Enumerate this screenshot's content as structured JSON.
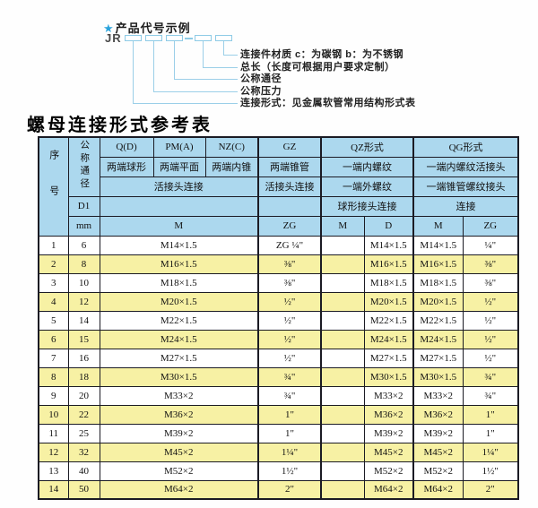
{
  "diagram": {
    "star_icon": "★",
    "heading": "产品代号示例",
    "prefix": "JR",
    "labels": [
      "连接件材质  c：为碳钢  b：为不锈钢",
      "总长（长度可根据用户要求定制）",
      "公称通径",
      "公称压力",
      "连接形式：见金属软管常用结构形式表"
    ]
  },
  "table": {
    "title": "螺母连接形式参考表",
    "header": {
      "col_no": "序号",
      "col_dn": "公称通径",
      "q": "Q(D)",
      "pm": "PM(A)",
      "nz": "NZ(C)",
      "gz": "GZ",
      "qz": "QZ形式",
      "qg": "QG形式",
      "q_desc": "两端球形",
      "pm_desc": "两端平面",
      "nz_desc": "两端内锥",
      "gz_desc": "两端锥管",
      "qz_desc1": "一端内螺纹",
      "qg_desc1": "一端内螺纹活接头",
      "joint_conn": "活接头连接",
      "gz_conn": "活接头连接",
      "qz_desc2": "一端外螺纹",
      "qg_desc2": "一端锥管螺纹接头",
      "d1": "D1",
      "qz_conn": "球形接头连接",
      "qg_conn": "连接",
      "mm": "mm",
      "m": "M",
      "zg": "ZG",
      "qz_m": "M",
      "qz_d": "D",
      "qg_m": "M",
      "qg_zg": "ZG"
    },
    "rows": [
      [
        "1",
        "6",
        "M14×1.5",
        "ZG ¼\"",
        "",
        "M14×1.5",
        "M14×1.5",
        "¼\""
      ],
      [
        "2",
        "8",
        "M16×1.5",
        "⅜\"",
        "",
        "M16×1.5",
        "M16×1.5",
        "⅜\""
      ],
      [
        "3",
        "10",
        "M18×1.5",
        "⅜\"",
        "",
        "M18×1.5",
        "M18×1.5",
        "⅜\""
      ],
      [
        "4",
        "12",
        "M20×1.5",
        "½\"",
        "",
        "M20×1.5",
        "M20×1.5",
        "½\""
      ],
      [
        "5",
        "14",
        "M22×1.5",
        "½\"",
        "",
        "M22×1.5",
        "M22×1.5",
        "½\""
      ],
      [
        "6",
        "15",
        "M24×1.5",
        "½\"",
        "",
        "M24×1.5",
        "M24×1.5",
        "½\""
      ],
      [
        "7",
        "16",
        "M27×1.5",
        "½\"",
        "",
        "M27×1.5",
        "M27×1.5",
        "½\""
      ],
      [
        "8",
        "18",
        "M30×1.5",
        "¾\"",
        "",
        "M30×1.5",
        "M30×1.5",
        "¾\""
      ],
      [
        "9",
        "20",
        "M33×2",
        "¾\"",
        "",
        "M33×2",
        "M33×2",
        "¾\""
      ],
      [
        "10",
        "22",
        "M36×2",
        "1\"",
        "",
        "M36×2",
        "M36×2",
        "1\""
      ],
      [
        "11",
        "25",
        "M39×2",
        "1\"",
        "",
        "M39×2",
        "M39×2",
        "1\""
      ],
      [
        "12",
        "32",
        "M45×2",
        "1¼\"",
        "",
        "M45×2",
        "M45×2",
        "1¼\""
      ],
      [
        "13",
        "40",
        "M52×2",
        "1½\"",
        "",
        "M52×2",
        "M52×2",
        "1½\""
      ],
      [
        "14",
        "50",
        "M64×2",
        "2\"",
        "",
        "M64×2",
        "M64×2",
        "2\""
      ]
    ]
  },
  "colors": {
    "header_bg": "#acd8ee",
    "stripe_bg": "#f7f1a4",
    "border": "#1b1b24",
    "accent_star_blue": "#2aa3dc",
    "connector_blue": "#9bcfe8"
  }
}
